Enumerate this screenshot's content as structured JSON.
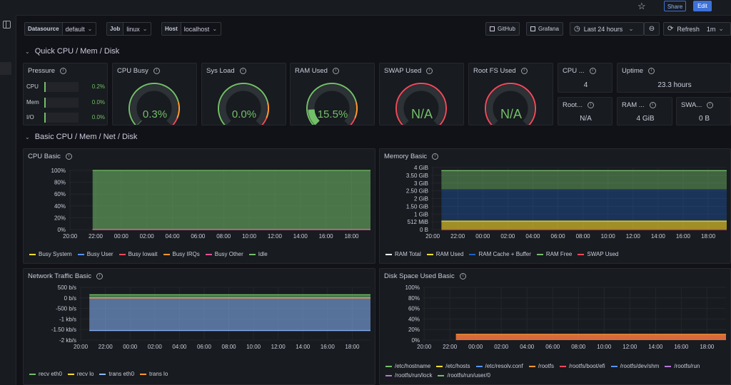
{
  "topbar": {
    "share_label": "Share",
    "edit_label": "Edit"
  },
  "toolbar": {
    "vars": [
      {
        "label": "Datasource",
        "value": "default"
      },
      {
        "label": "Job",
        "value": "linux"
      },
      {
        "label": "Host",
        "value": "localhost"
      }
    ],
    "github_label": "GitHub",
    "grafana_label": "Grafana",
    "timerange": "Last 24 hours",
    "refresh_label": "Refresh",
    "refresh_interval": "1m"
  },
  "rows": {
    "quick": "Quick CPU / Mem / Disk",
    "basic": "Basic CPU / Mem / Net / Disk"
  },
  "pressure": {
    "title": "Pressure",
    "items": [
      {
        "label": "CPU",
        "value": "0.2%",
        "fraction": 0.002
      },
      {
        "label": "Mem",
        "value": "0.0%",
        "fraction": 0
      },
      {
        "label": "I/O",
        "value": "0.0%",
        "fraction": 0
      }
    ]
  },
  "gauges": [
    {
      "title": "CPU Busy",
      "value": "0.3%",
      "fraction": 0.003
    },
    {
      "title": "Sys Load",
      "value": "0.0%",
      "fraction": 0
    },
    {
      "title": "RAM Used",
      "value": "15.5%",
      "fraction": 0.155
    },
    {
      "title": "SWAP Used",
      "value": "N/A",
      "fraction": null
    },
    {
      "title": "Root FS Used",
      "value": "N/A",
      "fraction": null
    }
  ],
  "stats": [
    {
      "title": "CPU ...",
      "value": "4"
    },
    {
      "title": "Uptime",
      "value": "23.3 hours"
    },
    {
      "title": "Root...",
      "value": "N/A"
    },
    {
      "title": "RAM ...",
      "value": "4 GiB"
    },
    {
      "title": "SWA...",
      "value": "0 B"
    }
  ],
  "colors": {
    "green": "#73bf69",
    "yellow": "#fade2a",
    "blue": "#5794f2",
    "red": "#f2495c",
    "orange": "#ff9830",
    "purple": "#b877d9",
    "gauge_track": "#2c3235"
  },
  "icons": {
    "star": "star-icon",
    "share": "share-icon",
    "panel_toggle": "dock-icon",
    "external": "external-link-icon",
    "clock": "clock-icon",
    "zoom_out": "zoom-out-icon",
    "refresh": "refresh-icon",
    "info": "info-icon",
    "chevron": "chevron-down-icon"
  },
  "chart_data": [
    {
      "type": "area",
      "title": "CPU Basic",
      "x": [
        "20:00",
        "22:00",
        "00:00",
        "02:00",
        "04:00",
        "06:00",
        "08:00",
        "10:00",
        "12:00",
        "14:00",
        "16:00",
        "18:00"
      ],
      "y_ticks": [
        "100%",
        "80%",
        "60%",
        "40%",
        "20%",
        "0%"
      ],
      "ylim": [
        0,
        100
      ],
      "series": [
        {
          "name": "Busy System",
          "color": "#fade2a",
          "value": 0.3
        },
        {
          "name": "Busy User",
          "color": "#5794f2",
          "value": 0.3
        },
        {
          "name": "Busy Iowait",
          "color": "#f2495c",
          "value": 0
        },
        {
          "name": "Busy IRQs",
          "color": "#ff9830",
          "value": 0.1
        },
        {
          "name": "Busy Other",
          "color": "#e0529a",
          "value": 0
        },
        {
          "name": "Idle",
          "color": "#73bf69",
          "value": 99.3
        }
      ]
    },
    {
      "type": "area",
      "title": "Memory Basic",
      "x": [
        "20:00",
        "22:00",
        "00:00",
        "02:00",
        "04:00",
        "06:00",
        "08:00",
        "10:00",
        "12:00",
        "14:00",
        "16:00",
        "18:00"
      ],
      "y_ticks": [
        "4 GiB",
        "3.50 GiB",
        "3 GiB",
        "2.50 GiB",
        "2 GiB",
        "1.50 GiB",
        "1 GiB",
        "512 MiB",
        "0 B"
      ],
      "ylim": [
        0,
        4
      ],
      "series": [
        {
          "name": "RAM Total",
          "color": "#ffffff",
          "value": 3.8
        },
        {
          "name": "RAM Used",
          "color": "#fade2a",
          "value": 0.55
        },
        {
          "name": "RAM Cache + Buffer",
          "color": "#1f60c4",
          "value": 2.6
        },
        {
          "name": "RAM Free",
          "color": "#73bf69",
          "value": 3.8
        },
        {
          "name": "SWAP Used",
          "color": "#f2495c",
          "value": 0
        }
      ]
    },
    {
      "type": "area",
      "title": "Network Traffic Basic",
      "x": [
        "20:00",
        "22:00",
        "00:00",
        "02:00",
        "04:00",
        "06:00",
        "08:00",
        "10:00",
        "12:00",
        "14:00",
        "16:00",
        "18:00"
      ],
      "y_ticks": [
        "500 b/s",
        "0 b/s",
        "-500 b/s",
        "-1 kb/s",
        "-1.50 kb/s",
        "-2 kb/s"
      ],
      "ylim": [
        -2000,
        500
      ],
      "series": [
        {
          "name": "recv eth0",
          "color": "#73bf69",
          "value": 150
        },
        {
          "name": "recv lo",
          "color": "#fade2a",
          "value": 0
        },
        {
          "name": "trans eth0",
          "color": "#8ab8ff",
          "value": -1550
        },
        {
          "name": "trans lo",
          "color": "#ff9830",
          "value": 0
        }
      ]
    },
    {
      "type": "area",
      "title": "Disk Space Used Basic",
      "x": [
        "20:00",
        "22:00",
        "00:00",
        "02:00",
        "04:00",
        "06:00",
        "08:00",
        "10:00",
        "12:00",
        "14:00",
        "16:00",
        "18:00"
      ],
      "y_ticks": [
        "100%",
        "80%",
        "60%",
        "40%",
        "20%",
        "0%"
      ],
      "ylim": [
        0,
        100
      ],
      "series": [
        {
          "name": "/etc/hostname",
          "color": "#73bf69",
          "value": 11
        },
        {
          "name": "/etc/hosts",
          "color": "#fade2a",
          "value": 11
        },
        {
          "name": "/etc/resolv.conf",
          "color": "#5794f2",
          "value": 11
        },
        {
          "name": "/rootfs",
          "color": "#ff9830",
          "value": 11
        },
        {
          "name": "/rootfs/boot/efi",
          "color": "#f2495c",
          "value": 11
        },
        {
          "name": "/rootfs/dev/shm",
          "color": "#5794f2",
          "value": 0
        },
        {
          "name": "/rootfs/run",
          "color": "#b877d9",
          "value": 0
        },
        {
          "name": "/rootfs/run/lock",
          "color": "#b877d9",
          "value": 0
        },
        {
          "name": "/rootfs/run/user/0",
          "color": "#73bf69",
          "value": 0
        }
      ]
    }
  ]
}
